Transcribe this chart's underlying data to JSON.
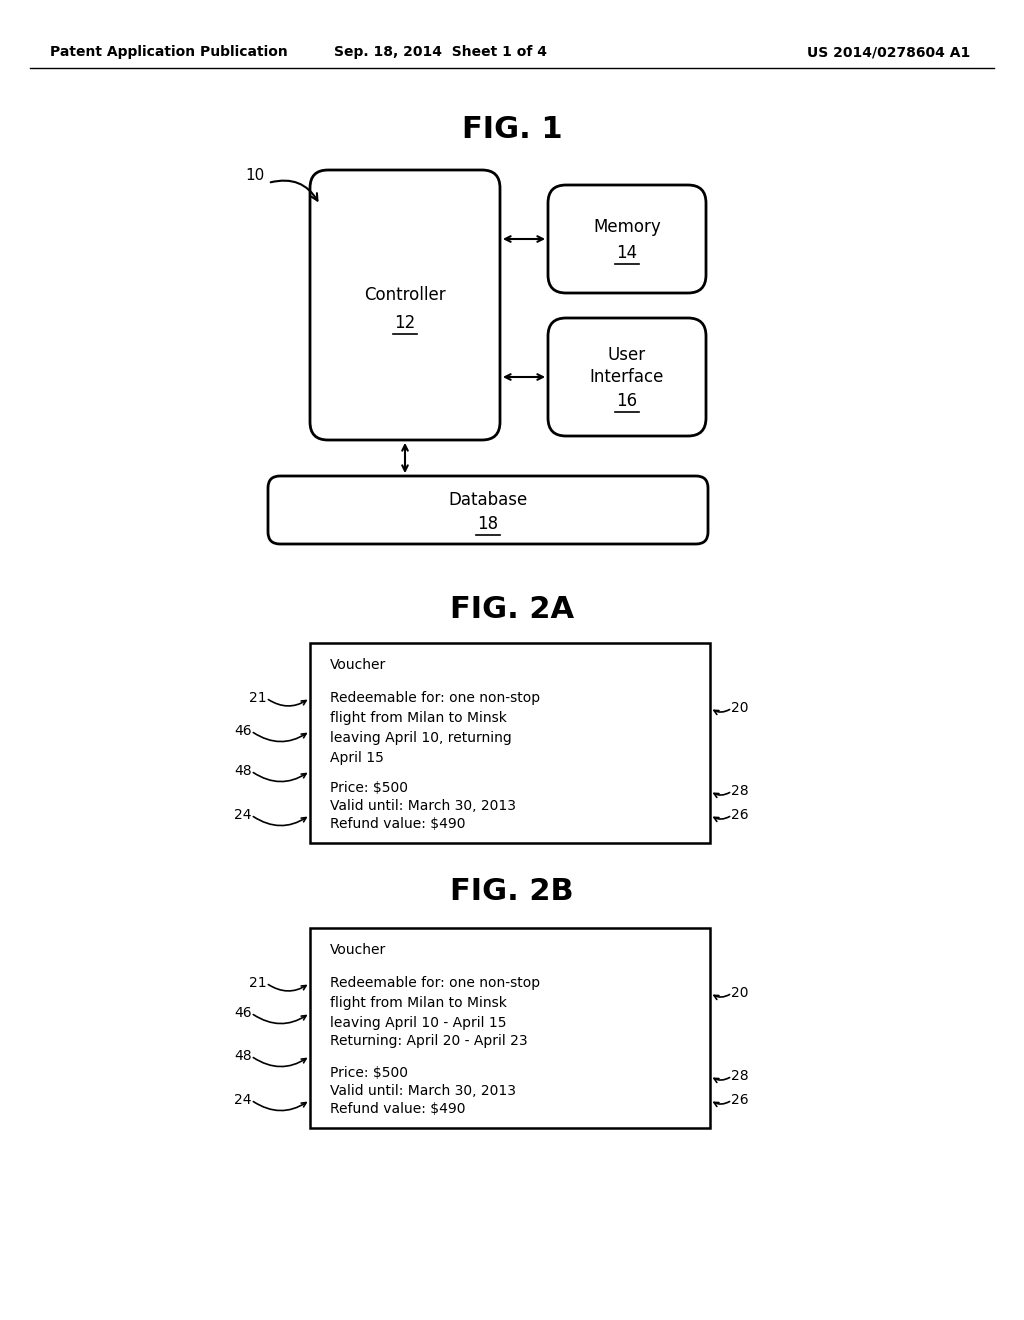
{
  "background_color": "#ffffff",
  "header_left": "Patent Application Publication",
  "header_center": "Sep. 18, 2014  Sheet 1 of 4",
  "header_right": "US 2014/0278604 A1",
  "fig1_title": "FIG. 1",
  "fig2a_title": "FIG. 2A",
  "fig2b_title": "FIG. 2B",
  "voucher_2a_lines": [
    [
      "Voucher",
      false
    ],
    [
      "",
      false
    ],
    [
      "Redeemable for: one non-stop",
      false
    ],
    [
      "flight from Milan to Minsk",
      false
    ],
    [
      "leaving April 10, returning",
      false
    ],
    [
      "April 15",
      false
    ],
    [
      "",
      false
    ],
    [
      "Price: $500",
      false
    ],
    [
      "Valid until: March 30, 2013",
      false
    ],
    [
      "Refund value: $490",
      false
    ]
  ],
  "voucher_2b_lines": [
    [
      "Voucher",
      false
    ],
    [
      "",
      false
    ],
    [
      "Redeemable for: one non-stop",
      false
    ],
    [
      "flight from Milan to Minsk",
      false
    ],
    [
      "leaving April 10 - April 15",
      false
    ],
    [
      "Returning: April 20 - April 23",
      false
    ],
    [
      "",
      false
    ],
    [
      "Price: $500",
      false
    ],
    [
      "Valid until: March 30, 2013",
      false
    ],
    [
      "Refund value: $490",
      false
    ]
  ]
}
